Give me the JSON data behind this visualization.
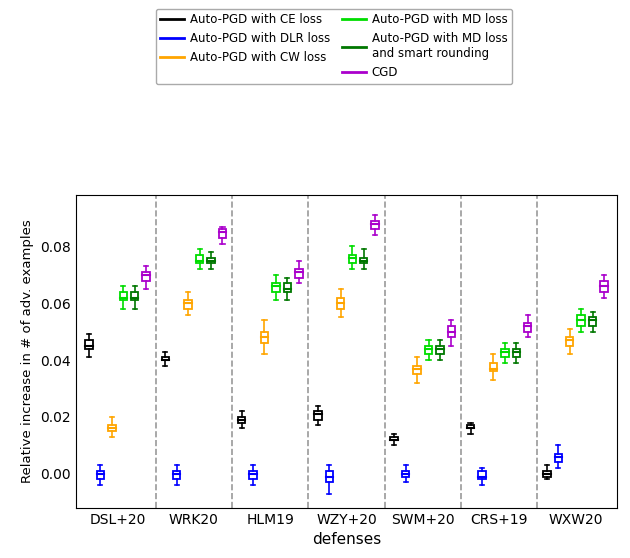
{
  "defenses": [
    "DSL+20",
    "WRK20",
    "HLM19",
    "WZY+20",
    "SWM+20",
    "CRS+19",
    "WXW20"
  ],
  "methods": [
    "CE",
    "DLR",
    "CW",
    "MD",
    "MD_smart",
    "CGD"
  ],
  "colors": {
    "CE": "#000000",
    "DLR": "#0000ff",
    "CW": "#ffa500",
    "MD": "#00dd00",
    "MD_smart": "#007700",
    "CGD": "#aa00cc"
  },
  "legend_labels": {
    "CE": "Auto-PGD with CE loss",
    "DLR": "Auto-PGD with DLR loss",
    "CW": "Auto-PGD with CW loss",
    "MD": "Auto-PGD with MD loss",
    "MD_smart": "Auto-PGD with MD loss\nand smart rounding",
    "CGD": "CGD"
  },
  "box_data": {
    "CE": {
      "DSL+20": [
        0.041,
        0.044,
        0.045,
        0.047,
        0.049
      ],
      "WRK20": [
        0.038,
        0.04,
        0.04,
        0.041,
        0.043
      ],
      "HLM19": [
        0.016,
        0.018,
        0.019,
        0.02,
        0.022
      ],
      "WZY+20": [
        0.017,
        0.019,
        0.021,
        0.022,
        0.024
      ],
      "SWM+20": [
        0.01,
        0.012,
        0.012,
        0.013,
        0.014
      ],
      "CRS+19": [
        0.014,
        0.016,
        0.016,
        0.017,
        0.018
      ],
      "WXW20": [
        -0.002,
        -0.001,
        0.0,
        0.001,
        0.003
      ]
    },
    "DLR": {
      "DSL+20": [
        -0.004,
        -0.002,
        0.0,
        0.001,
        0.003
      ],
      "WRK20": [
        -0.004,
        -0.002,
        0.0,
        0.001,
        0.003
      ],
      "HLM19": [
        -0.004,
        -0.002,
        0.0,
        0.001,
        0.003
      ],
      "WZY+20": [
        -0.007,
        -0.003,
        -0.001,
        0.001,
        0.003
      ],
      "SWM+20": [
        -0.003,
        -0.001,
        0.0,
        0.001,
        0.003
      ],
      "CRS+19": [
        -0.004,
        -0.002,
        -0.001,
        0.001,
        0.002
      ],
      "WXW20": [
        0.002,
        0.004,
        0.006,
        0.007,
        0.01
      ]
    },
    "CW": {
      "DSL+20": [
        0.013,
        0.015,
        0.016,
        0.017,
        0.02
      ],
      "WRK20": [
        0.056,
        0.058,
        0.06,
        0.061,
        0.064
      ],
      "HLM19": [
        0.042,
        0.046,
        0.048,
        0.05,
        0.054
      ],
      "WZY+20": [
        0.055,
        0.058,
        0.06,
        0.062,
        0.065
      ],
      "SWM+20": [
        0.032,
        0.035,
        0.037,
        0.038,
        0.041
      ],
      "CRS+19": [
        0.033,
        0.036,
        0.037,
        0.039,
        0.042
      ],
      "WXW20": [
        0.042,
        0.045,
        0.047,
        0.048,
        0.051
      ]
    },
    "MD": {
      "DSL+20": [
        0.058,
        0.061,
        0.062,
        0.064,
        0.066
      ],
      "WRK20": [
        0.072,
        0.074,
        0.075,
        0.077,
        0.079
      ],
      "HLM19": [
        0.061,
        0.064,
        0.066,
        0.067,
        0.07
      ],
      "WZY+20": [
        0.072,
        0.074,
        0.076,
        0.077,
        0.08
      ],
      "SWM+20": [
        0.04,
        0.042,
        0.044,
        0.045,
        0.047
      ],
      "CRS+19": [
        0.039,
        0.041,
        0.043,
        0.044,
        0.046
      ],
      "WXW20": [
        0.05,
        0.052,
        0.054,
        0.056,
        0.058
      ]
    },
    "MD_smart": {
      "DSL+20": [
        0.058,
        0.061,
        0.062,
        0.064,
        0.066
      ],
      "WRK20": [
        0.072,
        0.074,
        0.075,
        0.076,
        0.078
      ],
      "HLM19": [
        0.061,
        0.064,
        0.065,
        0.067,
        0.069
      ],
      "WZY+20": [
        0.072,
        0.074,
        0.075,
        0.076,
        0.079
      ],
      "SWM+20": [
        0.04,
        0.042,
        0.044,
        0.045,
        0.047
      ],
      "CRS+19": [
        0.039,
        0.041,
        0.043,
        0.044,
        0.046
      ],
      "WXW20": [
        0.05,
        0.052,
        0.054,
        0.055,
        0.057
      ]
    },
    "CGD": {
      "DSL+20": [
        0.065,
        0.068,
        0.07,
        0.071,
        0.073
      ],
      "WRK20": [
        0.081,
        0.083,
        0.085,
        0.086,
        0.087
      ],
      "HLM19": [
        0.067,
        0.069,
        0.071,
        0.072,
        0.075
      ],
      "WZY+20": [
        0.084,
        0.086,
        0.088,
        0.089,
        0.091
      ],
      "SWM+20": [
        0.045,
        0.048,
        0.05,
        0.052,
        0.054
      ],
      "CRS+19": [
        0.048,
        0.05,
        0.052,
        0.053,
        0.056
      ],
      "WXW20": [
        0.062,
        0.064,
        0.066,
        0.068,
        0.07
      ]
    }
  },
  "ylim": [
    -0.012,
    0.098
  ],
  "yticks": [
    0.0,
    0.02,
    0.04,
    0.06,
    0.08
  ],
  "ylabel": "Relative increase in # of adv. examples",
  "xlabel": "defenses",
  "figsize": [
    6.3,
    5.58
  ],
  "dpi": 100
}
